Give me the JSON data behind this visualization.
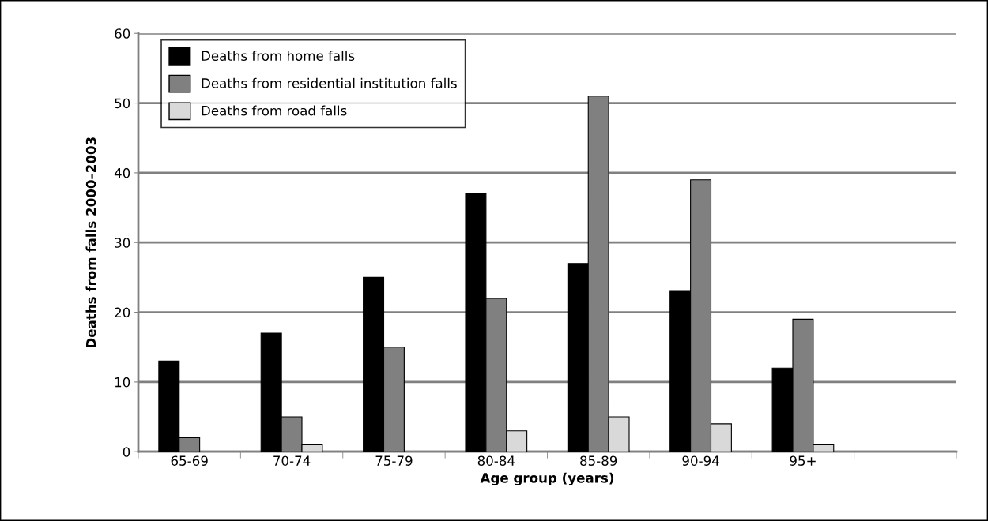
{
  "chart_data": {
    "type": "bar",
    "xlabel": "Age group (years)",
    "ylabel": "Deaths from falls 2000–2003",
    "categories": [
      "65-69",
      "70-74",
      "75-79",
      "80-84",
      "85-89",
      "90-94",
      "95+",
      null
    ],
    "series": [
      {
        "name": "Deaths from home falls",
        "color": "#000000",
        "values": [
          13,
          17,
          25,
          37,
          27,
          23,
          12,
          null
        ]
      },
      {
        "name": "Deaths from residential institution falls",
        "color": "#808080",
        "values": [
          2,
          5,
          15,
          22,
          51,
          39,
          19,
          null
        ]
      },
      {
        "name": "Deaths from road falls",
        "color": "#d9d9d9",
        "values": [
          0,
          1,
          0,
          3,
          5,
          4,
          1,
          null
        ]
      }
    ],
    "ylim": [
      0,
      60
    ],
    "yticks": [
      0,
      10,
      20,
      30,
      40,
      50,
      60
    ],
    "grid": "y",
    "legend": "top left"
  }
}
